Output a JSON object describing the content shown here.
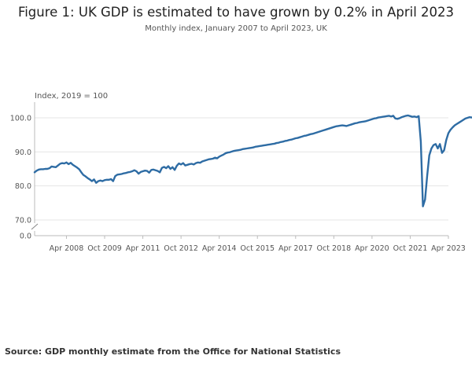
{
  "chart_data": {
    "type": "line",
    "title": "Figure 1: UK GDP is estimated to have grown by 0.2% in April 2023",
    "subtitle": "Monthly index, January 2007 to April 2023, UK",
    "ylabel": "Index, 2019 = 100",
    "xlabel": "",
    "ylim": [
      0,
      102
    ],
    "y_axis_break": true,
    "yticks": [
      "0.0",
      "70.0",
      "80.0",
      "90.0",
      "100.0"
    ],
    "xticks": [
      "Apr 2008",
      "Oct 2009",
      "Apr 2011",
      "Oct 2012",
      "Apr 2014",
      "Oct 2015",
      "Apr 2017",
      "Oct 2018",
      "Apr 2020",
      "Oct 2021",
      "Apr 2023"
    ],
    "grid": "horizontal",
    "legend": "none",
    "line_color": "#2e6ca4",
    "series": [
      {
        "x_start": "Jan 2007",
        "x_end": "Apr 2023",
        "values": [
          84.0,
          84.5,
          84.8,
          84.9,
          84.9,
          85.0,
          85.0,
          85.2,
          85.7,
          85.6,
          85.5,
          86.0,
          86.5,
          86.7,
          86.6,
          86.9,
          86.4,
          86.8,
          86.2,
          85.8,
          85.4,
          84.9,
          84.0,
          83.2,
          82.8,
          82.3,
          81.9,
          81.4,
          81.9,
          80.9,
          81.4,
          81.6,
          81.4,
          81.7,
          81.8,
          81.8,
          82.0,
          81.4,
          82.9,
          83.3,
          83.4,
          83.5,
          83.7,
          83.8,
          84.0,
          84.1,
          84.3,
          84.6,
          84.3,
          83.6,
          84.1,
          84.3,
          84.5,
          84.4,
          83.9,
          84.7,
          84.8,
          84.6,
          84.4,
          84.0,
          85.3,
          85.6,
          85.2,
          85.8,
          85.0,
          85.5,
          84.7,
          85.9,
          86.6,
          86.3,
          86.7,
          86.0,
          86.2,
          86.4,
          86.5,
          86.3,
          86.7,
          86.9,
          86.8,
          87.2,
          87.4,
          87.6,
          87.8,
          87.9,
          88.0,
          88.3,
          88.1,
          88.6,
          88.9,
          89.2,
          89.6,
          89.8,
          89.9,
          90.1,
          90.3,
          90.4,
          90.5,
          90.6,
          90.8,
          90.9,
          91.0,
          91.1,
          91.2,
          91.3,
          91.5,
          91.6,
          91.7,
          91.8,
          91.9,
          92.0,
          92.1,
          92.2,
          92.3,
          92.4,
          92.6,
          92.7,
          92.9,
          93.0,
          93.2,
          93.3,
          93.5,
          93.6,
          93.8,
          94.0,
          94.1,
          94.3,
          94.5,
          94.7,
          94.8,
          95.0,
          95.2,
          95.3,
          95.5,
          95.7,
          95.9,
          96.1,
          96.3,
          96.5,
          96.7,
          96.9,
          97.1,
          97.3,
          97.5,
          97.6,
          97.7,
          97.8,
          97.7,
          97.6,
          97.8,
          98.0,
          98.2,
          98.4,
          98.5,
          98.7,
          98.8,
          98.9,
          99.0,
          99.2,
          99.4,
          99.6,
          99.8,
          99.9,
          100.1,
          100.2,
          100.3,
          100.4,
          100.5,
          100.6,
          100.4,
          100.6,
          99.8,
          99.7,
          99.9,
          100.2,
          100.4,
          100.6,
          100.7,
          100.5,
          100.3,
          100.4,
          100.2,
          100.5,
          93.0,
          74.0,
          76.0,
          83.0,
          89.0,
          91.0,
          92.0,
          92.3,
          91.0,
          92.3,
          89.7,
          90.5,
          93.5,
          95.5,
          96.5,
          97.2,
          97.8,
          98.2,
          98.6,
          99.0,
          99.4,
          99.8,
          100.0,
          100.2,
          100.1,
          100.3,
          100.2,
          100.4,
          100.3,
          100.8,
          100.2,
          100.3,
          100.4,
          100.3,
          100.1,
          100.5,
          100.4,
          100.2
        ]
      }
    ]
  },
  "footer": {
    "source": "Source: GDP monthly estimate from the Office for National Statistics"
  }
}
